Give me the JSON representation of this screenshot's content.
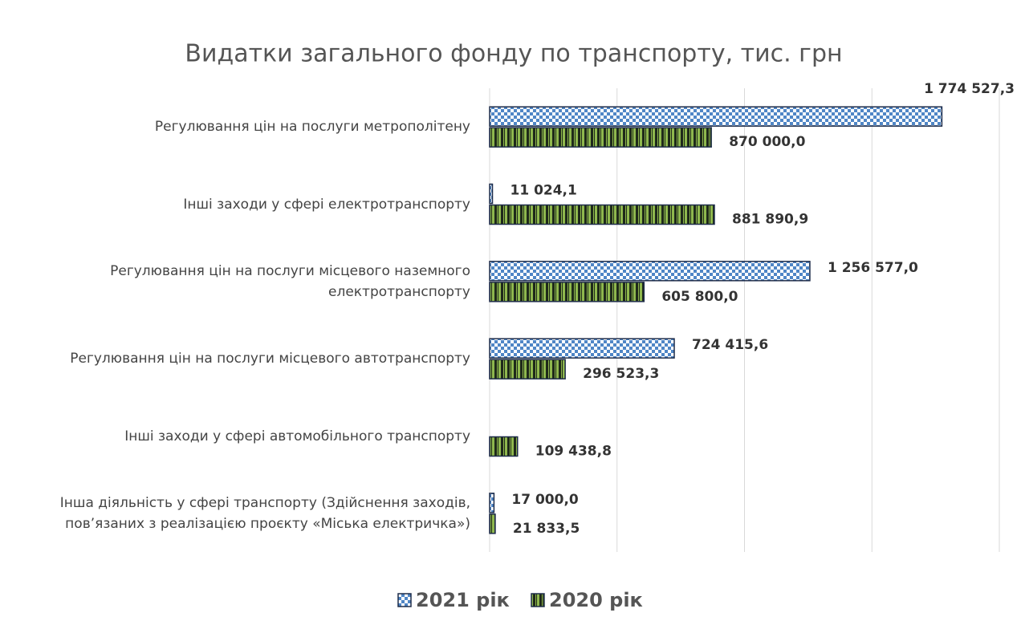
{
  "chart_data": {
    "type": "hbar",
    "title": "Видатки загального фонду по транспорту, тис. грн",
    "categories": [
      "Регулювання цін на послуги метрополітену",
      "Інші заходи у сфері електротранспорту",
      "Регулювання цін на послуги місцевого наземного\nелектротранспорту",
      "Регулювання цін на послуги місцевого автотранспорту",
      "Інші заходи у сфері автомобільного транспорту",
      "Інша діяльність у сфері транспорту (Здійснення заходів,\nпов’язаних з реалізацією проєкту «Міська електричка»)"
    ],
    "series": [
      {
        "name": "2021 рік",
        "color": "#4f86c6",
        "values": [
          1774527.3,
          11024.1,
          1256577.0,
          724415.6,
          null,
          17000.0
        ],
        "value_labels": [
          "1 774 527,3",
          "11 024,1",
          "1 256 577,0",
          "724 415,6",
          null,
          "17 000,0"
        ]
      },
      {
        "name": "2020 рік",
        "color": "#8fb84e",
        "values": [
          870000.0,
          881890.9,
          605800.0,
          296523.3,
          109438.8,
          21833.5
        ],
        "value_labels": [
          "870 000,0",
          "881 890,9",
          "605 800,0",
          "296 523,3",
          "109 438,8",
          "21 833,5"
        ]
      }
    ],
    "xlim": [
      0,
      2000000
    ],
    "xticks": [
      0,
      500000,
      1000000,
      1500000,
      2000000
    ],
    "grid": true,
    "legend": "bottom"
  }
}
